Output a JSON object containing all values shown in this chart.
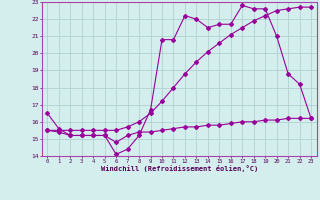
{
  "xlabel": "Windchill (Refroidissement éolien,°C)",
  "background_color": "#d4eeee",
  "grid_color": "#aacccc",
  "line_color": "#990099",
  "spine_color": "#aa44aa",
  "xmin": -0.5,
  "xmax": 23.5,
  "ymin": 14,
  "ymax": 23,
  "yticks": [
    14,
    15,
    16,
    17,
    18,
    19,
    20,
    21,
    22,
    23
  ],
  "xticks": [
    0,
    1,
    2,
    3,
    4,
    5,
    6,
    7,
    8,
    9,
    10,
    11,
    12,
    13,
    14,
    15,
    16,
    17,
    18,
    19,
    20,
    21,
    22,
    23
  ],
  "series1_x": [
    0,
    1,
    2,
    3,
    4,
    5,
    6,
    7,
    8,
    9,
    10,
    11,
    12,
    13,
    14,
    15,
    16,
    17,
    18,
    19,
    20,
    21,
    22,
    23
  ],
  "series1_y": [
    16.5,
    15.6,
    15.2,
    15.2,
    15.2,
    15.2,
    14.1,
    14.4,
    15.2,
    16.7,
    20.8,
    20.8,
    22.2,
    22.0,
    21.5,
    21.7,
    21.7,
    22.8,
    22.6,
    22.6,
    21.0,
    18.8,
    18.2,
    16.2
  ],
  "series2_x": [
    0,
    1,
    2,
    3,
    4,
    5,
    6,
    7,
    8,
    9,
    10,
    11,
    12,
    13,
    14,
    15,
    16,
    17,
    18,
    19,
    20,
    21,
    22,
    23
  ],
  "series2_y": [
    15.5,
    15.4,
    15.2,
    15.2,
    15.2,
    15.2,
    14.8,
    15.2,
    15.4,
    15.4,
    15.5,
    15.6,
    15.7,
    15.7,
    15.8,
    15.8,
    15.9,
    16.0,
    16.0,
    16.1,
    16.1,
    16.2,
    16.2,
    16.2
  ],
  "series3_x": [
    0,
    1,
    2,
    3,
    4,
    5,
    6,
    7,
    8,
    9,
    10,
    11,
    12,
    13,
    14,
    15,
    16,
    17,
    18,
    19,
    20,
    21,
    22,
    23
  ],
  "series3_y": [
    15.5,
    15.5,
    15.5,
    15.5,
    15.5,
    15.5,
    15.5,
    15.7,
    16.0,
    16.5,
    17.2,
    18.0,
    18.8,
    19.5,
    20.1,
    20.6,
    21.1,
    21.5,
    21.9,
    22.2,
    22.5,
    22.6,
    22.7,
    22.7
  ]
}
